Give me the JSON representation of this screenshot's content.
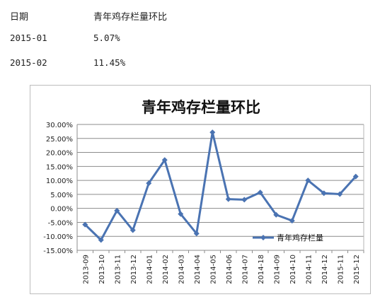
{
  "table": {
    "header": [
      "日期",
      "青年鸡存栏量环比"
    ],
    "rows": [
      [
        "2015-01",
        "5.07%"
      ],
      [
        "2015-02",
        "11.45%"
      ]
    ]
  },
  "chart_data": {
    "type": "line",
    "title": "青年鸡存栏量环比",
    "xlabel": "",
    "ylabel": "",
    "categories": [
      "2013-09",
      "2013-10",
      "2013-11",
      "2013-12",
      "2014-01",
      "2014-02",
      "2014-03",
      "2014-04",
      "2014-05",
      "2014-06",
      "2014-07",
      "2014-18",
      "2014-09",
      "2014-10",
      "2014-11",
      "2014-12",
      "2015-11",
      "2015-12"
    ],
    "series": [
      {
        "name": "青年鸡存栏量",
        "values": [
          -5.8,
          -11.3,
          -0.8,
          -7.8,
          9.0,
          17.3,
          -2.0,
          -9.0,
          27.2,
          3.3,
          3.1,
          5.7,
          -2.3,
          -4.4,
          10.0,
          5.4,
          5.1,
          11.4
        ]
      }
    ],
    "y_ticks": [
      "30.00%",
      "25.00%",
      "20.00%",
      "15.00%",
      "10.00%",
      "5.00%",
      "0.00%",
      "-5.00%",
      "-10.00%",
      "-15.00%"
    ],
    "ylim": [
      -15,
      30
    ],
    "grid": true,
    "legend_position": "bottom-right",
    "line_color": "#4a73b2"
  }
}
